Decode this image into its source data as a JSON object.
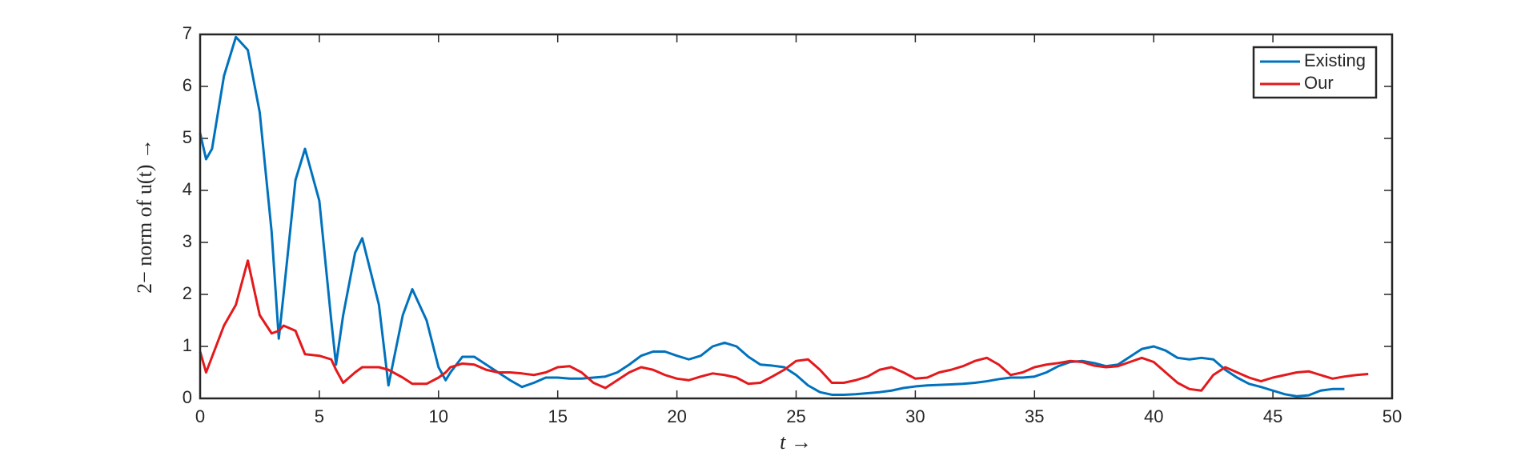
{
  "chart_data": {
    "type": "line",
    "xlabel": "t →",
    "ylabel": "2− norm of u(t) →",
    "x": [
      0,
      0.25,
      0.5,
      1,
      1.5,
      2,
      2.5,
      3,
      3.3,
      3.5,
      4,
      4.4,
      5,
      5.5,
      5.7,
      6,
      6.5,
      6.8,
      7.5,
      7.9,
      8.5,
      8.9,
      9.5,
      10,
      10.3,
      10.5,
      11,
      11.5,
      12,
      12.5,
      13,
      13.5,
      14,
      14.5,
      15,
      15.5,
      16,
      16.5,
      17,
      17.5,
      18,
      18.5,
      19,
      19.5,
      20,
      20.5,
      21,
      21.5,
      22,
      22.5,
      23,
      23.5,
      24,
      24.5,
      25,
      25.5,
      26,
      26.5,
      27,
      27.5,
      28,
      28.5,
      29,
      29.5,
      30,
      30.5,
      31,
      31.5,
      32,
      32.5,
      33,
      33.5,
      34,
      34.5,
      35,
      35.5,
      36,
      36.5,
      37,
      37.5,
      38,
      38.5,
      39,
      39.5,
      40,
      40.5,
      41,
      41.5,
      42,
      42.5,
      43,
      43.5,
      44,
      44.5,
      45,
      45.5,
      46,
      46.5,
      47,
      47.5,
      48,
      48.5,
      49
    ],
    "series": [
      {
        "name": "Existing",
        "color": "#0072bd",
        "values": [
          5.1,
          4.6,
          4.8,
          6.2,
          6.95,
          6.7,
          5.5,
          3.2,
          1.15,
          2.0,
          4.2,
          4.8,
          3.8,
          1.5,
          0.65,
          1.6,
          2.8,
          3.08,
          1.8,
          0.25,
          1.6,
          2.1,
          1.5,
          0.6,
          0.35,
          0.5,
          0.8,
          0.8,
          0.65,
          0.5,
          0.35,
          0.22,
          0.3,
          0.4,
          0.4,
          0.38,
          0.38,
          0.4,
          0.42,
          0.5,
          0.65,
          0.82,
          0.9,
          0.9,
          0.82,
          0.75,
          0.82,
          1.0,
          1.07,
          1.0,
          0.8,
          0.65,
          0.63,
          0.6,
          0.45,
          0.25,
          0.12,
          0.07,
          0.07,
          0.08,
          0.1,
          0.12,
          0.15,
          0.2,
          0.23,
          0.25,
          0.26,
          0.27,
          0.28,
          0.3,
          0.33,
          0.37,
          0.4,
          0.4,
          0.42,
          0.5,
          0.62,
          0.7,
          0.72,
          0.68,
          0.62,
          0.65,
          0.8,
          0.95,
          1.0,
          0.92,
          0.78,
          0.75,
          0.78,
          0.75,
          0.55,
          0.4,
          0.28,
          0.22,
          0.15,
          0.08,
          0.04,
          0.06,
          0.15,
          0.18,
          0.18,
          null,
          null
        ]
      },
      {
        "name": "Our",
        "color": "#e3191c",
        "values": [
          0.9,
          0.5,
          0.8,
          1.4,
          1.8,
          2.65,
          1.6,
          1.25,
          1.3,
          1.4,
          1.3,
          0.85,
          0.82,
          0.75,
          0.55,
          0.3,
          0.5,
          0.6,
          0.6,
          0.55,
          0.4,
          0.28,
          0.28,
          0.4,
          0.5,
          0.6,
          0.67,
          0.65,
          0.55,
          0.5,
          0.5,
          0.48,
          0.45,
          0.5,
          0.6,
          0.62,
          0.5,
          0.3,
          0.2,
          0.35,
          0.5,
          0.6,
          0.55,
          0.45,
          0.38,
          0.35,
          0.42,
          0.48,
          0.45,
          0.4,
          0.28,
          0.3,
          0.42,
          0.55,
          0.72,
          0.75,
          0.55,
          0.3,
          0.3,
          0.35,
          0.42,
          0.55,
          0.6,
          0.5,
          0.38,
          0.4,
          0.5,
          0.55,
          0.62,
          0.72,
          0.78,
          0.65,
          0.45,
          0.5,
          0.6,
          0.65,
          0.68,
          0.72,
          0.7,
          0.63,
          0.6,
          0.62,
          0.7,
          0.78,
          0.7,
          0.5,
          0.3,
          0.18,
          0.15,
          0.45,
          0.6,
          0.5,
          0.4,
          0.33,
          0.4,
          0.45,
          0.5,
          0.52,
          0.45,
          0.38,
          0.42,
          0.45,
          0.47
        ]
      }
    ],
    "xlim": [
      0,
      50
    ],
    "xticks": [
      0,
      5,
      10,
      15,
      20,
      25,
      30,
      35,
      40,
      45,
      50
    ],
    "ylim": [
      0,
      7
    ],
    "yticks": [
      0,
      1,
      2,
      3,
      4,
      5,
      6,
      7
    ],
    "legend": "northeast"
  }
}
